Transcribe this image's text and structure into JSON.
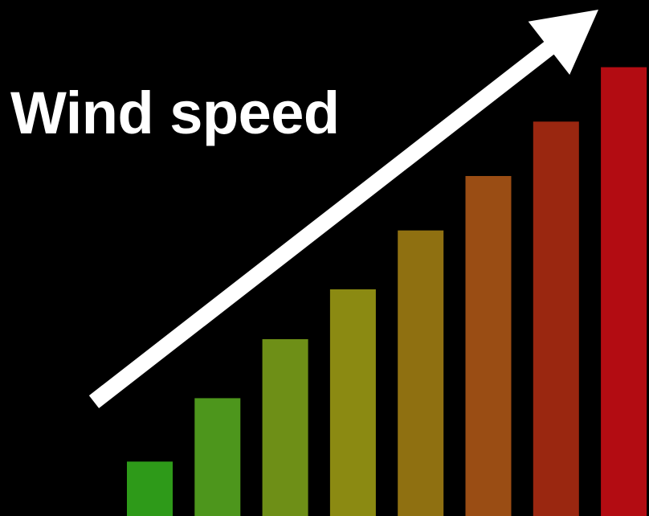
{
  "chart_data": {
    "type": "bar",
    "title": "Wind speed",
    "xlabel": "",
    "ylabel": "",
    "grid": false,
    "legend": "none",
    "ylim": [
      0,
      100
    ],
    "values": [
      12,
      26,
      39,
      50,
      63,
      75,
      87,
      99
    ],
    "bar_colors": [
      "#2e9a19",
      "#4d961c",
      "#6e8f17",
      "#8b8a12",
      "#8f7011",
      "#9a4d14",
      "#9a2710",
      "#b30c12"
    ],
    "trend_arrow": {
      "direction": "up",
      "color": "#ffffff"
    }
  }
}
